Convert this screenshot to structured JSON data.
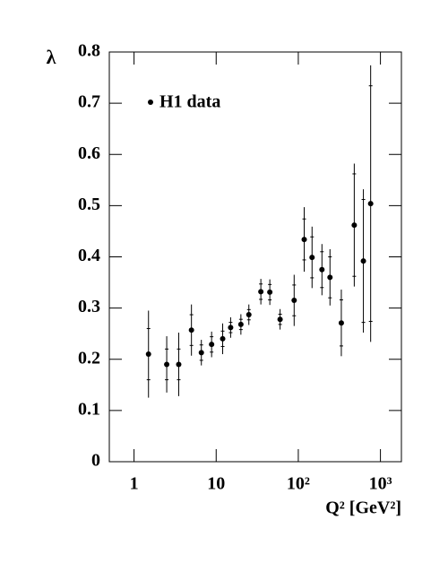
{
  "chart_data": {
    "type": "scatter",
    "y_label": "λ",
    "x_label": "Q² [GeV²]",
    "legend_label": "H1 data",
    "color": "#000000",
    "x": [
      1.5,
      2.5,
      3.5,
      5.0,
      6.6,
      8.8,
      12,
      15,
      20,
      25,
      35,
      45,
      60,
      89,
      118,
      147,
      194,
      243,
      334,
      480,
      620,
      760
    ],
    "values": [
      0.21,
      0.19,
      0.19,
      0.257,
      0.213,
      0.229,
      0.24,
      0.262,
      0.268,
      0.287,
      0.332,
      0.331,
      0.278,
      0.315,
      0.434,
      0.399,
      0.375,
      0.36,
      0.271,
      0.462,
      0.392,
      0.504
    ],
    "errors": [
      0.085,
      0.055,
      0.062,
      0.05,
      0.025,
      0.025,
      0.03,
      0.02,
      0.02,
      0.02,
      0.025,
      0.025,
      0.02,
      0.05,
      0.063,
      0.06,
      0.05,
      0.055,
      0.065,
      0.12,
      0.14,
      0.27
    ],
    "stat_errors": [
      0.05,
      0.03,
      0.03,
      0.03,
      0.015,
      0.015,
      0.015,
      0.01,
      0.01,
      0.01,
      0.015,
      0.015,
      0.01,
      0.03,
      0.04,
      0.04,
      0.035,
      0.04,
      0.045,
      0.1,
      0.12,
      0.23
    ],
    "xlim": [
      0.5,
      1800
    ],
    "ylim": [
      0,
      0.8
    ],
    "log_x": true,
    "xticks": [
      1,
      10,
      {
        "value": 100,
        "label": "10²"
      },
      {
        "value": 1000,
        "label": "10³"
      }
    ],
    "yticks": [
      0,
      0.1,
      0.2,
      0.3,
      0.4,
      0.5,
      0.6,
      0.7,
      0.8
    ]
  }
}
